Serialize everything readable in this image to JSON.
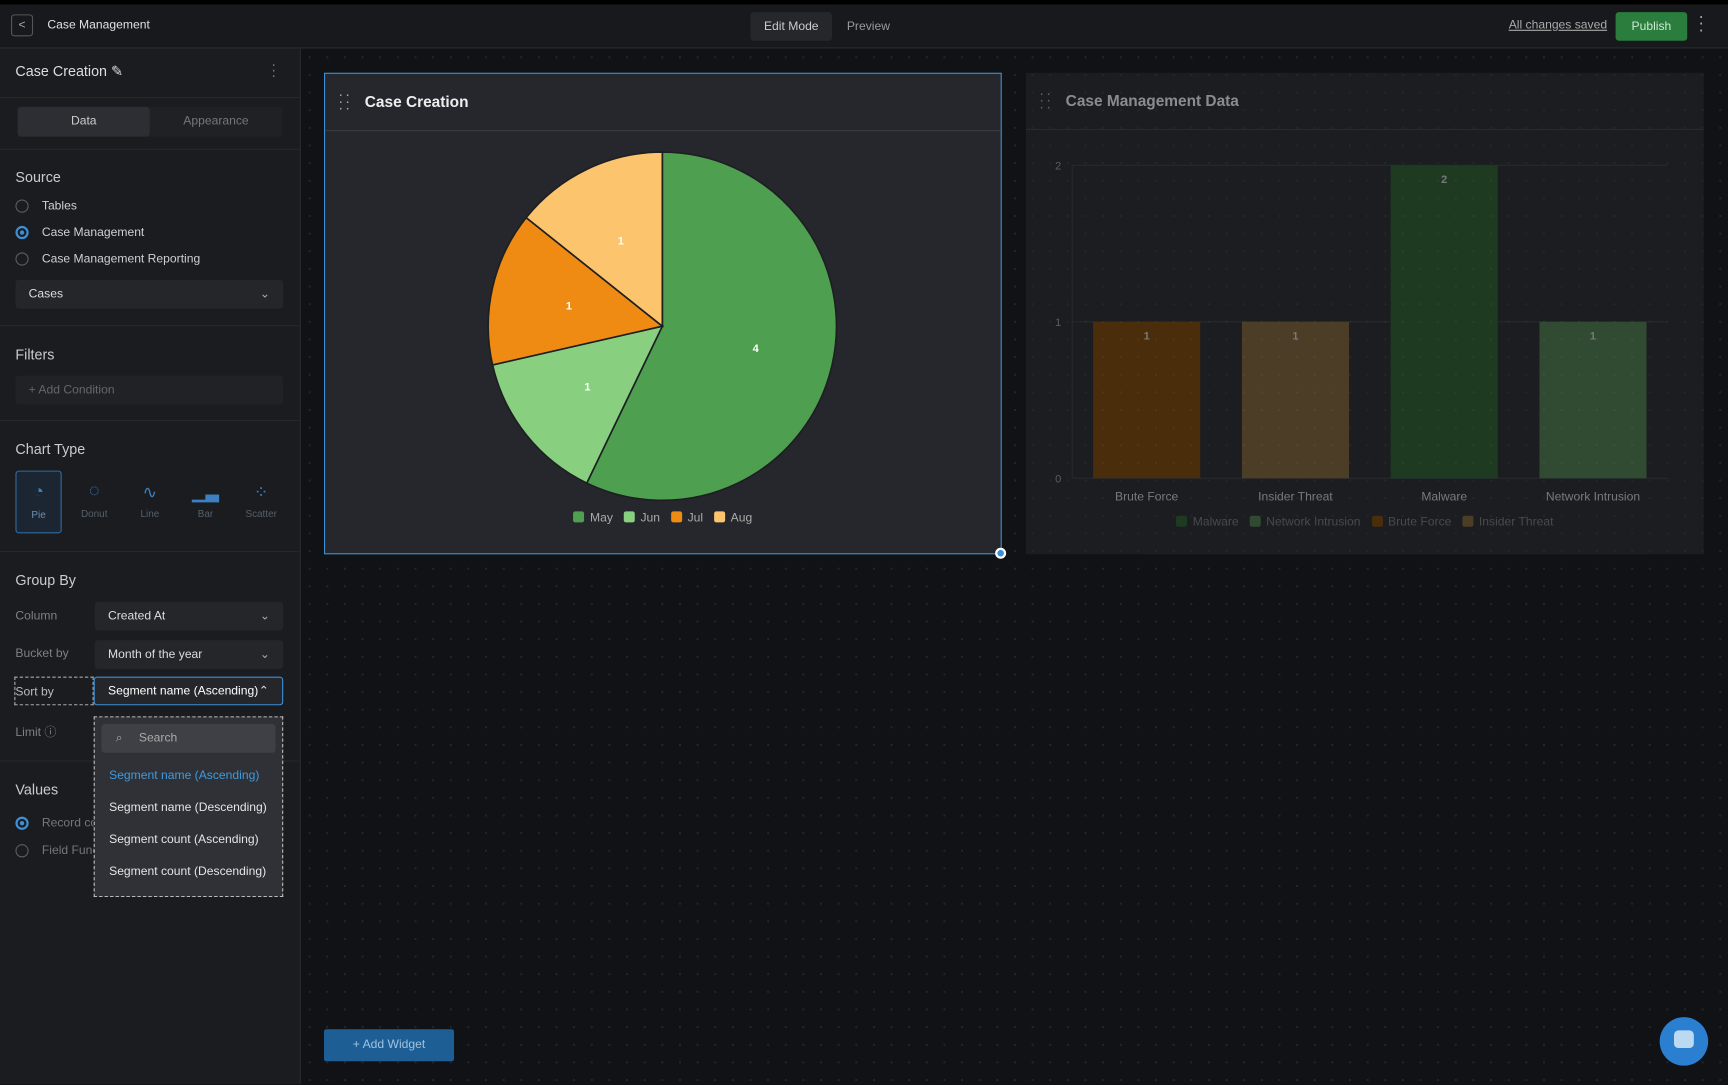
{
  "header": {
    "title": "Case Management",
    "modes": [
      "Edit Mode",
      "Preview"
    ],
    "status": "All changes saved",
    "publish": "Publish"
  },
  "sidebar": {
    "title": "Case Creation",
    "tabs": [
      "Data",
      "Appearance"
    ],
    "source": {
      "label": "Source",
      "options": [
        "Tables",
        "Case Management",
        "Case Management Reporting"
      ],
      "selected": 1,
      "table": "Cases"
    },
    "filters": {
      "label": "Filters",
      "add": "+ Add Condition"
    },
    "chart_type": {
      "label": "Chart Type",
      "options": [
        "Pie",
        "Donut",
        "Line",
        "Bar",
        "Scatter"
      ],
      "selected": 0
    },
    "group_by": {
      "label": "Group By",
      "column_label": "Column",
      "column": "Created At",
      "bucket_label": "Bucket by",
      "bucket": "Month of the year",
      "sort_label": "Sort by",
      "sort": "Segment name (Ascending)",
      "limit_label": "Limit"
    },
    "values": {
      "label": "Values",
      "options": [
        "Record count",
        "Field Function"
      ],
      "selected": 0
    },
    "dropdown": {
      "search": "Search",
      "options": [
        "Segment name (Ascending)",
        "Segment name (Descending)",
        "Segment count (Ascending)",
        "Segment count (Descending)"
      ],
      "selected": 0
    }
  },
  "add_widget": "+ Add Widget",
  "chart_data": [
    {
      "type": "pie",
      "title": "Case Creation",
      "categories": [
        "May",
        "Jun",
        "Jul",
        "Aug"
      ],
      "values": [
        4,
        1,
        1,
        1
      ],
      "colors": [
        "#4e9f4f",
        "#88d07f",
        "#ef8a12",
        "#fdc46e"
      ]
    },
    {
      "type": "bar",
      "title": "Case Management Data",
      "categories": [
        "Brute Force",
        "Insider Threat",
        "Malware",
        "Network Intrusion"
      ],
      "values": [
        1,
        1,
        2,
        1
      ],
      "colors": [
        "#7a4506",
        "#7d6136",
        "#2b5d2c",
        "#4b7a4b"
      ],
      "ylim": [
        0,
        2
      ],
      "yticks": [
        0,
        1,
        2
      ],
      "grid": true,
      "legend": [
        {
          "name": "Malware",
          "color": "#2b5d2c"
        },
        {
          "name": "Network Intrusion",
          "color": "#4b7a4b"
        },
        {
          "name": "Brute Force",
          "color": "#7a4506"
        },
        {
          "name": "Insider Threat",
          "color": "#7d6136"
        }
      ]
    }
  ]
}
